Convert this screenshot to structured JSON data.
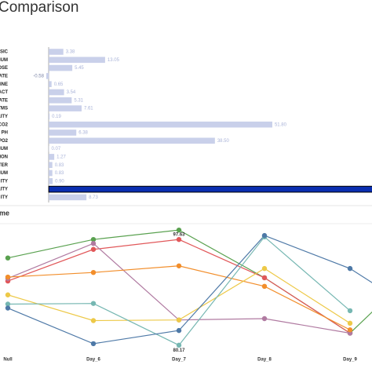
{
  "header": {
    "title": "Comparison"
  },
  "chart_data": [
    {
      "type": "hbar",
      "categories": [
        "LSIC",
        "IUM",
        "OSE",
        "RATE",
        "INE",
        "ACT",
        "RATE",
        "TMS",
        "LITY",
        "CO2",
        "PH",
        "PO2",
        "IUM",
        "ION",
        "TER",
        "IUM",
        "ITY",
        "LITY",
        "ITY"
      ],
      "values": [
        3.38,
        13.05,
        5.45,
        -0.58,
        0.65,
        3.54,
        5.31,
        7.61,
        0.19,
        51.8,
        6.38,
        38.5,
        0.07,
        1.27,
        0.83,
        0.83,
        0.9,
        78,
        8.73
      ],
      "value_labels": [
        "3.38",
        "13.05",
        "5.45",
        "-0.58",
        "0.65",
        "3.54",
        "5.31",
        "7.61",
        "0.19",
        "51.80",
        "6.38",
        "38.50",
        "0.07",
        "1.27",
        "0.83",
        "0.83",
        "0.90",
        null,
        "8.73"
      ],
      "color": "#c9d0ea",
      "highlight": {
        "index": 17,
        "color": "#0a2eb0"
      },
      "xlim": [
        -11.3,
        74.9
      ]
    },
    {
      "type": "line",
      "title": "me",
      "categories": [
        "Null",
        "Day_6",
        "Day_7",
        "Day_8",
        "Day_9",
        null
      ],
      "ylim": [
        79.2,
        98.6
      ],
      "series": [
        {
          "color": "#59a14f",
          "values": [
            93.4,
            96.2,
            97.63,
            90.4,
            82.0,
            94.4
          ],
          "value_labels": [
            null,
            null,
            "97.63",
            null,
            null,
            null
          ]
        },
        {
          "color": "#e15759",
          "values": [
            89.9,
            94.7,
            96.2,
            90.4,
            82.0,
            null
          ]
        },
        {
          "color": "#b07aa1",
          "values": [
            90.3,
            95.6,
            84.0,
            84.2,
            82.0,
            null
          ]
        },
        {
          "color": "#f28e2b",
          "values": [
            90.5,
            91.2,
            92.2,
            89.1,
            82.5,
            null
          ]
        },
        {
          "color": "#edc948",
          "values": [
            87.8,
            83.9,
            84.0,
            91.8,
            83.5,
            null
          ]
        },
        {
          "color": "#76b7b2",
          "values": [
            86.4,
            86.5,
            80.17,
            96.6,
            85.4,
            null
          ],
          "value_labels": [
            null,
            null,
            "80.17",
            null,
            null,
            null
          ]
        },
        {
          "color": "#4e79a7",
          "values": [
            85.8,
            80.4,
            82.4,
            96.8,
            91.8,
            83.5
          ]
        }
      ]
    }
  ]
}
